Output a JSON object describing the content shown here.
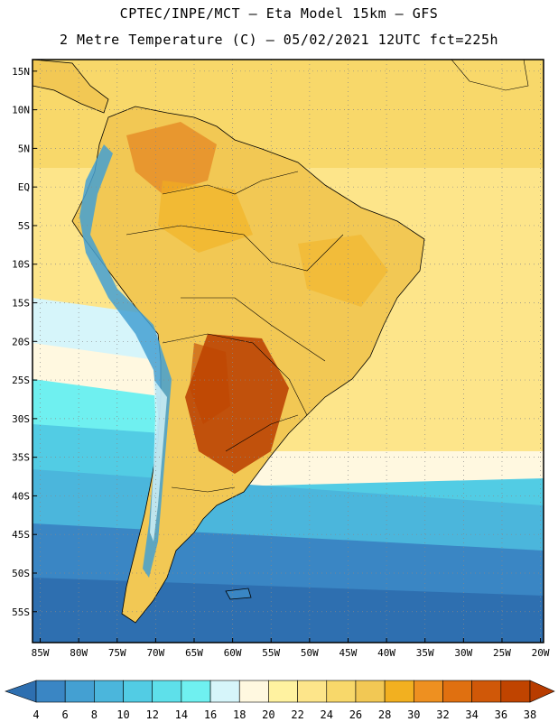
{
  "header": {
    "line1": "CPTEC/INPE/MCT –  Eta Model 15km – GFS",
    "line2": "2 Metre Temperature (C) – 05/02/2021 12UTC fct=225h"
  },
  "map": {
    "lon_range": [
      -86,
      -19.6
    ],
    "lat_range": [
      -59,
      16.5
    ],
    "lat_ticks": [
      "15N",
      "10N",
      "5N",
      "EQ",
      "5S",
      "10S",
      "15S",
      "20S",
      "25S",
      "30S",
      "35S",
      "40S",
      "45S",
      "50S",
      "55S"
    ],
    "lat_values": [
      15,
      10,
      5,
      0,
      -5,
      -10,
      -15,
      -20,
      -25,
      -30,
      -35,
      -40,
      -45,
      -50,
      -55
    ],
    "lon_ticks": [
      "85W",
      "80W",
      "75W",
      "70W",
      "65W",
      "60W",
      "55W",
      "50W",
      "45W",
      "40W",
      "35W",
      "30W",
      "25W",
      "20W"
    ],
    "lon_values": [
      -85,
      -80,
      -75,
      -70,
      -65,
      -60,
      -55,
      -50,
      -45,
      -40,
      -35,
      -30,
      -25,
      -20
    ]
  },
  "colorbar": {
    "labels": [
      "4",
      "6",
      "8",
      "10",
      "12",
      "14",
      "16",
      "18",
      "20",
      "22",
      "24",
      "26",
      "28",
      "30",
      "32",
      "34",
      "36",
      "38"
    ],
    "colors": [
      "#2e6fb0",
      "#3a86c4",
      "#44a0d2",
      "#4bb6dc",
      "#52cce4",
      "#5ee0ea",
      "#6ff0f0",
      "#d6f5fa",
      "#fff8e0",
      "#fff2a0",
      "#fde58a",
      "#f8d86a",
      "#f2c854",
      "#f2b020",
      "#ee9020",
      "#e07010",
      "#d05808",
      "#c04400",
      "#b83c00"
    ]
  },
  "colors": {
    "ocean_south": "#2e6fb0",
    "ocean_mid": "#4bb6dc",
    "ocean_warm": "#fde58a",
    "land": "#f2c854",
    "hot": "#c05a10",
    "andes": "#3a86c4"
  }
}
